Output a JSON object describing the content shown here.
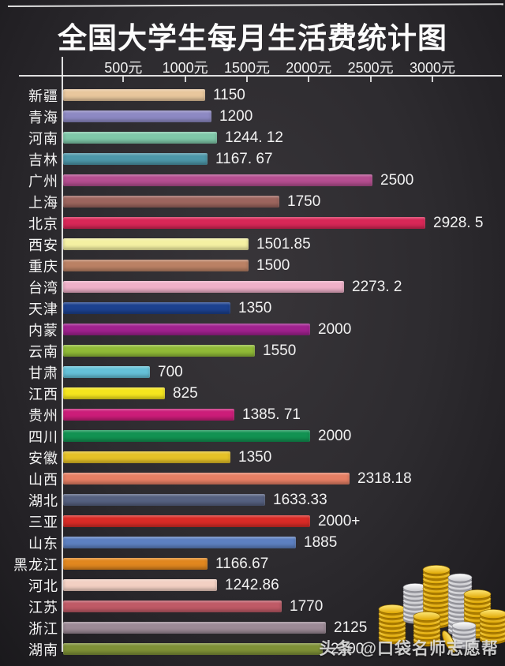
{
  "chart_data": {
    "type": "bar",
    "orientation": "horizontal",
    "title": "全国大学生每月生活费统计图",
    "xlabel": "",
    "ylabel": "",
    "unit": "元",
    "xlim": [
      0,
      3080
    ],
    "grid": false,
    "legend": null,
    "x_ticks": [
      {
        "value": 500,
        "label": "500元"
      },
      {
        "value": 1000,
        "label": "1000元"
      },
      {
        "value": 1500,
        "label": "1500元"
      },
      {
        "value": 2000,
        "label": "2000元"
      },
      {
        "value": 2500,
        "label": "2500元"
      },
      {
        "value": 3000,
        "label": "3000元"
      }
    ],
    "bars": [
      {
        "label": "新疆",
        "value": 1150,
        "display": "1150",
        "color": "#e8c79d"
      },
      {
        "label": "青海",
        "value": 1200,
        "display": "1200",
        "color": "#8d89c3"
      },
      {
        "label": "河南",
        "value": 1244.12,
        "display": "1244. 12",
        "color": "#7fc8a9"
      },
      {
        "label": "吉林",
        "value": 1167.67,
        "display": "1167. 67",
        "color": "#4d97a9"
      },
      {
        "label": "广州",
        "value": 2500,
        "display": "2500",
        "color": "#b54e90"
      },
      {
        "label": "上海",
        "value": 1750,
        "display": "1750",
        "color": "#9c655e"
      },
      {
        "label": "北京",
        "value": 2928.5,
        "display": "2928. 5",
        "color": "#d82757"
      },
      {
        "label": "西安",
        "value": 1501.85,
        "display": "1501.85",
        "color": "#f4f0a2"
      },
      {
        "label": "重庆",
        "value": 1500,
        "display": "1500",
        "color": "#ba8164"
      },
      {
        "label": "台湾",
        "value": 2273.2,
        "display": "2273. 2",
        "color": "#efb0c8"
      },
      {
        "label": "天津",
        "value": 1350,
        "display": "1350",
        "color": "#1c418f"
      },
      {
        "label": "内蒙",
        "value": 2000,
        "display": "2000",
        "color": "#a0218f"
      },
      {
        "label": "云南",
        "value": 1550,
        "display": "1550",
        "color": "#90bb37"
      },
      {
        "label": "甘肃",
        "value": 700,
        "display": "700",
        "color": "#65c1d8"
      },
      {
        "label": "江西",
        "value": 825,
        "display": "825",
        "color": "#f4e51e"
      },
      {
        "label": "贵州",
        "value": 1385.71,
        "display": "1385. 71",
        "color": "#cc1d79"
      },
      {
        "label": "四川",
        "value": 2000,
        "display": "2000",
        "color": "#129252"
      },
      {
        "label": "安徽",
        "value": 1350,
        "display": "1350",
        "color": "#e5c127"
      },
      {
        "label": "山西",
        "value": 2318.18,
        "display": "2318.18",
        "color": "#e67f64"
      },
      {
        "label": "湖北",
        "value": 1633.33,
        "display": "1633.33",
        "color": "#566180"
      },
      {
        "label": "三亚",
        "value": 2000,
        "display": "2000+",
        "color": "#d92b26"
      },
      {
        "label": "山东",
        "value": 1885,
        "display": "1885",
        "color": "#5d80c1"
      },
      {
        "label": "黑龙江",
        "value": 1166.67,
        "display": "1166.67",
        "color": "#e1871f"
      },
      {
        "label": "河北",
        "value": 1242.86,
        "display": "1242.86",
        "color": "#f2d0c3"
      },
      {
        "label": "江苏",
        "value": 1770,
        "display": "1770",
        "color": "#bf5a66"
      },
      {
        "label": "浙江",
        "value": 2125,
        "display": "2125",
        "color": "#9c8a96"
      },
      {
        "label": "湖南",
        "value": 2100,
        "display": "2100",
        "color": "#7e9037"
      }
    ]
  },
  "watermark": {
    "brand": "头条",
    "handle": "@口袋名师志愿帮"
  },
  "decor": {
    "coins_icon": "gold-and-silver-coin-stacks"
  },
  "colors": {
    "background": "#2d2b2f",
    "axis": "#f0f0f0",
    "text": "#f4f4f4"
  }
}
